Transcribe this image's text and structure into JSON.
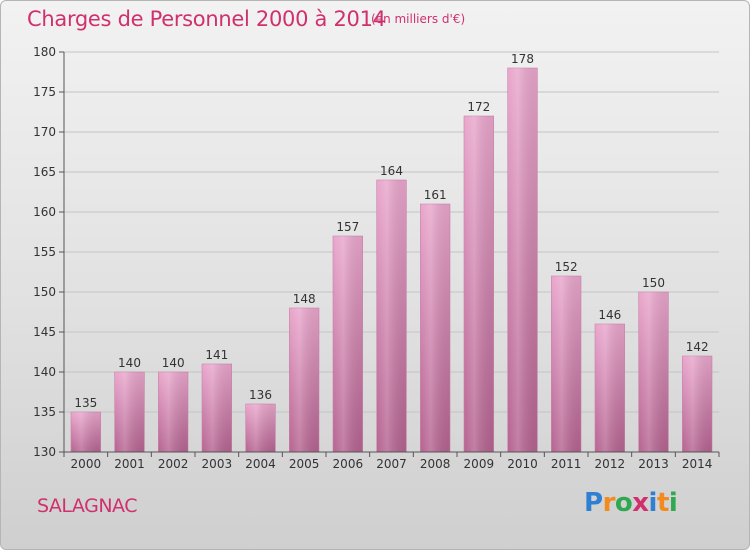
{
  "header": {
    "title": "Charges de Personnel 2000 à 2014",
    "subtitle": "(en milliers d'€)"
  },
  "commune": "SALAGNAC",
  "logo": {
    "text": "Proxiti",
    "letters": [
      {
        "ch": "P",
        "color": "#2f7fd3"
      },
      {
        "ch": "r",
        "color": "#f28a1e"
      },
      {
        "ch": "o",
        "color": "#2fa84f"
      },
      {
        "ch": "x",
        "color": "#d0306d"
      },
      {
        "ch": "i",
        "color": "#2f7fd3"
      },
      {
        "ch": "t",
        "color": "#f28a1e"
      },
      {
        "ch": "i",
        "color": "#2fa84f"
      }
    ]
  },
  "colors": {
    "accent": "#d0306d",
    "bar_top": "#e9a6cc",
    "bar_bottom": "#b56390",
    "grid": "#c4c4c4",
    "axis": "#555555"
  },
  "chart_data": {
    "type": "bar",
    "title": "Charges de Personnel 2000 à 2014",
    "subtitle": "(en milliers d'€)",
    "xlabel": "",
    "ylabel": "",
    "categories": [
      "2000",
      "2001",
      "2002",
      "2003",
      "2004",
      "2005",
      "2006",
      "2007",
      "2008",
      "2009",
      "2010",
      "2011",
      "2012",
      "2013",
      "2014"
    ],
    "values": [
      135,
      140,
      140,
      141,
      136,
      148,
      157,
      164,
      161,
      172,
      178,
      152,
      146,
      150,
      142
    ],
    "value_labels": [
      "135",
      "140",
      "140",
      "141",
      "136",
      "148",
      "157",
      "164",
      "161",
      "172",
      "178",
      "152",
      "146",
      "150",
      "142"
    ],
    "ylim": [
      130,
      180
    ],
    "yticks": [
      130,
      135,
      140,
      145,
      150,
      155,
      160,
      165,
      170,
      175,
      180
    ],
    "ytick_labels": [
      "130",
      "135",
      "140",
      "145",
      "150",
      "155",
      "160",
      "165",
      "170",
      "175",
      "180"
    ],
    "grid": true,
    "legend": "none"
  }
}
